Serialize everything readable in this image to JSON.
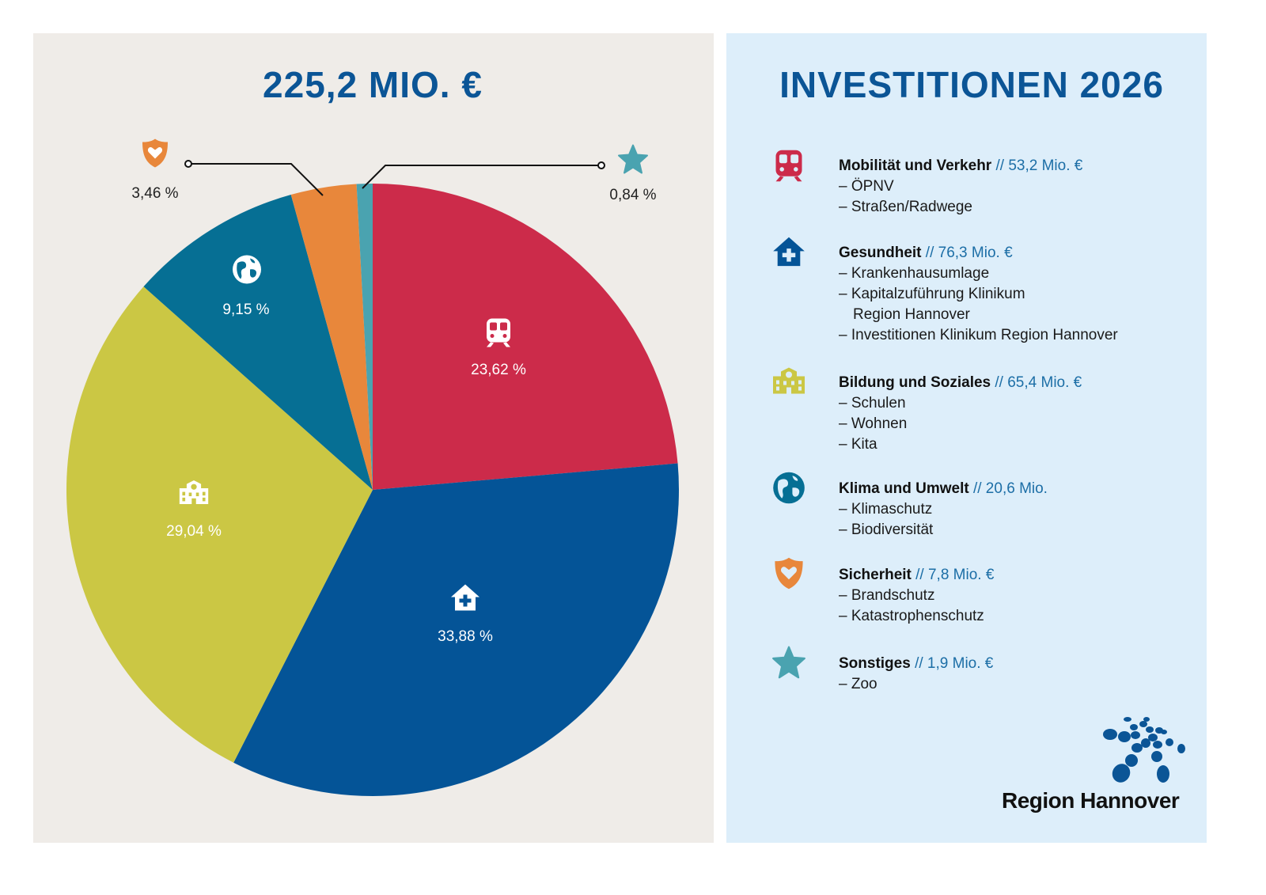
{
  "colors": {
    "mobilitaet": "#cc2b4a",
    "gesundheit": "#045497",
    "bildung": "#cbc744",
    "klima": "#066f94",
    "sicherheit": "#e8873b",
    "sonstiges": "#4aa3b0",
    "title": "#0b5596",
    "amount": "#1c6ea6"
  },
  "chart_data": {
    "type": "pie",
    "title": "225,2 MIO. €",
    "start": "top",
    "direction": "clockwise",
    "slices": [
      {
        "key": "mobilitaet",
        "label": "23,62 %",
        "value": 23.62,
        "icon": "train-icon",
        "color": "#cc2b4a"
      },
      {
        "key": "gesundheit",
        "label": "33,88 %",
        "value": 33.88,
        "icon": "hospital-house-icon",
        "color": "#045497"
      },
      {
        "key": "bildung",
        "label": "29,04 %",
        "value": 29.04,
        "icon": "school-building-icon",
        "color": "#cbc744"
      },
      {
        "key": "klima",
        "label": "9,15 %",
        "value": 9.15,
        "icon": "globe-icon",
        "color": "#066f94"
      },
      {
        "key": "sicherheit",
        "label": "3,46 %",
        "value": 3.46,
        "icon": "shield-heart-icon",
        "color": "#e8873b"
      },
      {
        "key": "sonstiges",
        "label": "0,84 %",
        "value": 0.84,
        "icon": "star-icon",
        "color": "#4aa3b0"
      }
    ]
  },
  "legend": {
    "title": "INVESTITIONEN 2026",
    "items": [
      {
        "name": "Mobilität und Verkehr",
        "amount": "// 53,2 Mio. €",
        "icon": "train-icon",
        "subs": [
          "– ÖPNV",
          "– Straßen/Radwege"
        ]
      },
      {
        "name": "Gesundheit",
        "amount": "// 76,3 Mio. €",
        "icon": "hospital-house-icon",
        "subs": [
          "– Krankenhausumlage",
          "– Kapitalzuführung Klinikum",
          "Region Hannover",
          "– Investitionen Klinikum Region Hannover"
        ]
      },
      {
        "name": "Bildung und Soziales",
        "amount": "// 65,4 Mio. €",
        "icon": "school-building-icon",
        "subs": [
          "– Schulen",
          "– Wohnen",
          "– Kita"
        ]
      },
      {
        "name": "Klima und Umwelt",
        "amount": "// 20,6 Mio.",
        "icon": "globe-icon",
        "subs": [
          "– Klimaschutz",
          "– Biodiversität"
        ]
      },
      {
        "name": "Sicherheit",
        "amount": "// 7,8 Mio. €",
        "icon": "shield-heart-icon",
        "subs": [
          "– Brandschutz",
          "– Katastrophenschutz"
        ]
      },
      {
        "name": "Sonstiges",
        "amount": "// 1,9 Mio. €",
        "icon": "star-icon",
        "subs": [
          "– Zoo"
        ]
      }
    ]
  },
  "logo": {
    "text": "Region Hannover"
  }
}
